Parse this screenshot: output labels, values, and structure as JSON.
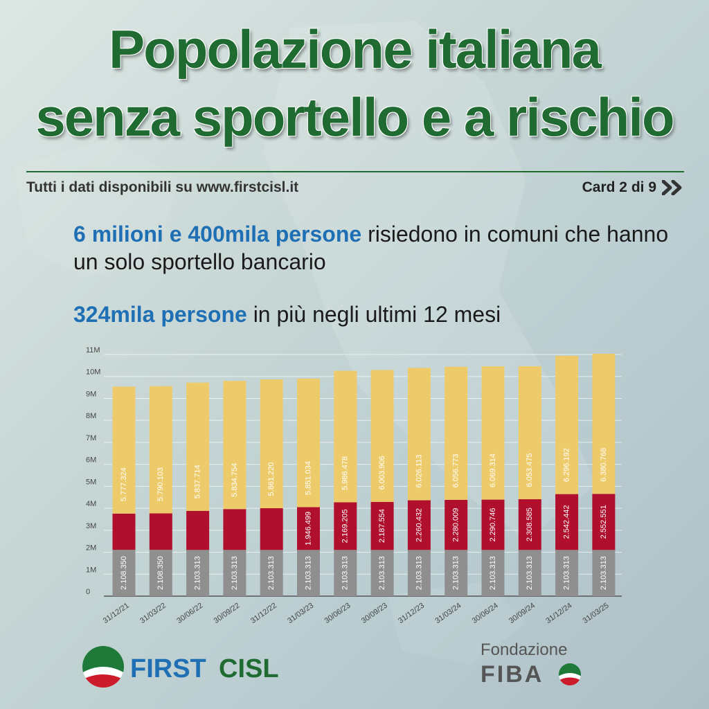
{
  "header": {
    "title_line1": "Popolazione italiana",
    "title_line2": "senza sportello e a rischio",
    "source_text": "Tutti i dati disponibili su www.firstcisl.it",
    "card_text": "Card 2 di 9"
  },
  "lead": {
    "line1_highlight": "6 milioni e 400mila persone",
    "line1_rest": " risiedono in comuni che hanno un solo sportello bancario",
    "line2_highlight": "324mila persone",
    "line2_rest": " in più negli ultimi 12 mesi"
  },
  "colors": {
    "title_green": "#1f6b32",
    "highlight_blue": "#1f6fb5",
    "gray_segment": "#8f8f8f",
    "red_segment": "#b0102e",
    "yellow_segment": "#eecb6a"
  },
  "chart_data": {
    "type": "bar",
    "stacked": true,
    "categories": [
      "31/12/21",
      "31/03/22",
      "30/06/22",
      "30/09/22",
      "31/12/22",
      "31/03/23",
      "30/06/23",
      "30/09/23",
      "31/12/23",
      "31/03/24",
      "30/06/24",
      "30/09/24",
      "31/12/24",
      "31/03/25"
    ],
    "y_ticks": [
      "0",
      "1M",
      "2M",
      "3M",
      "4M",
      "5M",
      "6M",
      "7M",
      "8M",
      "9M",
      "10M",
      "11M"
    ],
    "ylim": [
      0,
      11000000
    ],
    "grid": true,
    "series": [
      {
        "color": "#8f8f8f",
        "values": [
          2108350,
          2108350,
          2103313,
          2103313,
          2103313,
          2103313,
          2103313,
          2103313,
          2103313,
          2103313,
          2103313,
          2103313,
          2103313,
          2103313
        ],
        "labels": [
          "2.108.350",
          "2.108.350",
          "2.103.313",
          "2.103.313",
          "2.103.313",
          "2.103.313",
          "2.103.313",
          "2.103.313",
          "2.103.313",
          "2.103.313",
          "2.103.313",
          "2.103.313",
          "2.103.313",
          "2.103.313"
        ]
      },
      {
        "color": "#b0102e",
        "values": [
          1650000,
          1660000,
          1780000,
          1860000,
          1900000,
          1946499,
          2169205,
          2187554,
          2260432,
          2280009,
          2290746,
          2308585,
          2542442,
          2552551
        ],
        "labels": [
          "",
          "",
          "",
          "",
          "",
          "1.946.499",
          "2.169.205",
          "2.187.554",
          "2.260.432",
          "2.280.009",
          "2.290.746",
          "2.308.585",
          "2.542.442",
          "2.552.551"
        ]
      },
      {
        "color": "#eecb6a",
        "values": [
          5777324,
          5790103,
          5837714,
          5834754,
          5861220,
          5851034,
          5986478,
          6003906,
          6026113,
          6056773,
          6069314,
          6053475,
          6296192,
          6380768
        ],
        "labels": [
          "5.777.324",
          "5.790.103",
          "5.837.714",
          "5.834.754",
          "5.861.220",
          "5.851.034",
          "5.986.478",
          "6.003.906",
          "6.026.113",
          "6.056.773",
          "6.069.314",
          "6.053.475",
          "6.296.192",
          "6.380.768"
        ]
      }
    ]
  },
  "logos": {
    "first_a": "FIRST",
    "first_b": "CISL",
    "fiba_line1": "Fondazione",
    "fiba_line2": "FIBA"
  }
}
